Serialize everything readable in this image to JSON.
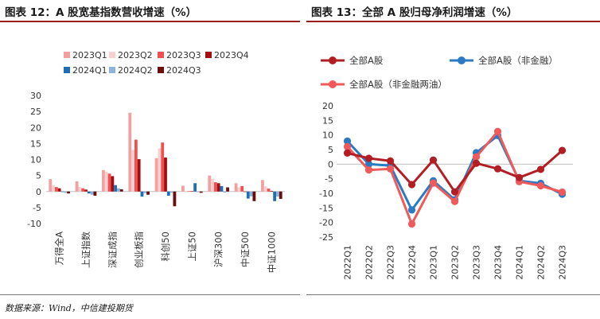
{
  "titles": {
    "left": "图表 12：A 股宽基指数营收增速（%）",
    "right": "图表 13：全部 A 股归母净利润增速（%）"
  },
  "footer": "数据来源：Wind，中信建投期货",
  "chart_data": [
    {
      "type": "bar",
      "categories": [
        "万得全A",
        "上证指数",
        "深证成指",
        "创业板指",
        "科创50",
        "上证50",
        "沪深300",
        "中证500",
        "中证1000"
      ],
      "series": [
        {
          "name": "2023Q1",
          "color": "#f4a0a0",
          "values": [
            3.9,
            3.2,
            6.7,
            24.6,
            10.4,
            1.8,
            5.0,
            2.6,
            3.6
          ]
        },
        {
          "name": "2023Q2",
          "color": "#f7d0d0",
          "values": [
            2.0,
            1.4,
            6.2,
            13.0,
            13.5,
            0.2,
            4.0,
            1.3,
            1.6
          ]
        },
        {
          "name": "2023Q3",
          "color": "#f05050",
          "values": [
            1.4,
            1.0,
            5.6,
            16.2,
            15.3,
            0.1,
            2.9,
            1.7,
            0.9
          ]
        },
        {
          "name": "2023Q4",
          "color": "#a30d12",
          "values": [
            1.0,
            0.6,
            4.8,
            10.1,
            10.6,
            0.1,
            2.6,
            0.0,
            0.2
          ]
        },
        {
          "name": "2024Q1",
          "color": "#1f6fb5",
          "values": [
            0.0,
            -0.6,
            2.0,
            -1.6,
            -1.3,
            2.6,
            1.7,
            -2.2,
            -3.0
          ]
        },
        {
          "name": "2024Q2",
          "color": "#8ab4dc",
          "values": [
            -0.4,
            -1.0,
            1.0,
            -0.5,
            -0.4,
            -0.2,
            -0.3,
            -1.5,
            -1.6
          ]
        },
        {
          "name": "2024Q3",
          "color": "#6b0d0d",
          "values": [
            -0.6,
            -1.3,
            0.7,
            -1.0,
            -4.6,
            -0.4,
            1.3,
            -3.0,
            -2.3
          ]
        }
      ],
      "ylim": [
        -10,
        30
      ],
      "yticks": [
        -10,
        -5,
        0,
        5,
        10,
        15,
        20,
        25,
        30
      ],
      "legend_rows": [
        [
          "2023Q1",
          "2023Q2",
          "2023Q3",
          "2023Q4"
        ],
        [
          "2024Q1",
          "2024Q2",
          "2024Q3"
        ]
      ]
    },
    {
      "type": "line",
      "x": [
        "2022Q1",
        "2022Q2",
        "2022Q3",
        "2022Q4",
        "2023Q1",
        "2023Q2",
        "2023Q3",
        "2023Q4",
        "2024Q1",
        "2024Q2",
        "2024Q3"
      ],
      "series": [
        {
          "name": "全部A股",
          "color": "#b21e24",
          "values": [
            3.8,
            2.0,
            1.1,
            -7.0,
            1.4,
            -9.5,
            0.3,
            -1.6,
            -4.6,
            -1.8,
            4.7
          ]
        },
        {
          "name": "全部A股（非金融）",
          "color": "#2b7bc4",
          "values": [
            7.9,
            0.0,
            -0.5,
            -15.7,
            -5.7,
            -12.2,
            3.9,
            9.8,
            -5.7,
            -6.6,
            -10.3
          ]
        },
        {
          "name": "全部A股（非金融两油）",
          "color": "#f05a5a",
          "values": [
            6.0,
            -2.0,
            -1.6,
            -20.5,
            -6.5,
            -12.8,
            2.5,
            11.2,
            -6.0,
            -7.4,
            -9.6
          ]
        }
      ],
      "ylim": [
        -25,
        20
      ],
      "yticks": [
        -25,
        -20,
        -15,
        -10,
        -5,
        0,
        5,
        10,
        15,
        20
      ]
    }
  ]
}
